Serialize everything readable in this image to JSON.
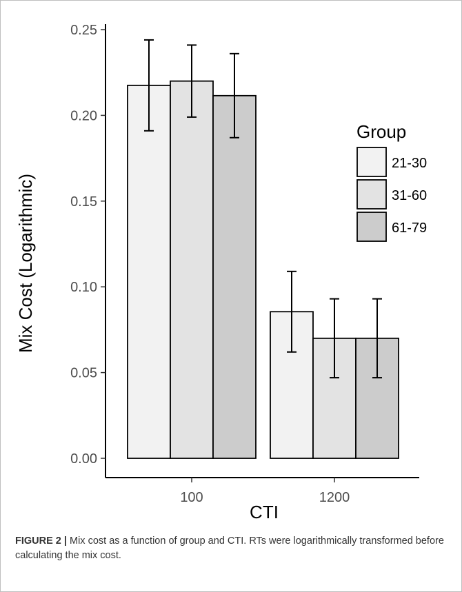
{
  "chart_data": {
    "type": "bar",
    "xlabel": "CTI",
    "ylabel": "Mix Cost (Logarithmic)",
    "categories": [
      "100",
      "1200"
    ],
    "ylim": [
      0,
      0.25
    ],
    "yticks": [
      "0.00",
      "0.05",
      "0.10",
      "0.15",
      "0.20",
      "0.25"
    ],
    "legend": {
      "title": "Group",
      "position": "right"
    },
    "grid": false,
    "series": [
      {
        "name": "21-30",
        "color": "#f2f2f2",
        "values": [
          0.2175,
          0.0855
        ],
        "error_low": [
          0.191,
          0.062
        ],
        "error_high": [
          0.244,
          0.109
        ]
      },
      {
        "name": "31-60",
        "color": "#e3e3e3",
        "values": [
          0.22,
          0.07
        ],
        "error_low": [
          0.199,
          0.047
        ],
        "error_high": [
          0.241,
          0.093
        ]
      },
      {
        "name": "61-79",
        "color": "#cccccc",
        "values": [
          0.2115,
          0.07
        ],
        "error_low": [
          0.187,
          0.047
        ],
        "error_high": [
          0.236,
          0.093
        ]
      }
    ]
  },
  "caption": {
    "label": "FIGURE 2 |",
    "text": "Mix cost as a function of group and CTI. RTs were logarithmically transformed before calculating the mix cost."
  }
}
